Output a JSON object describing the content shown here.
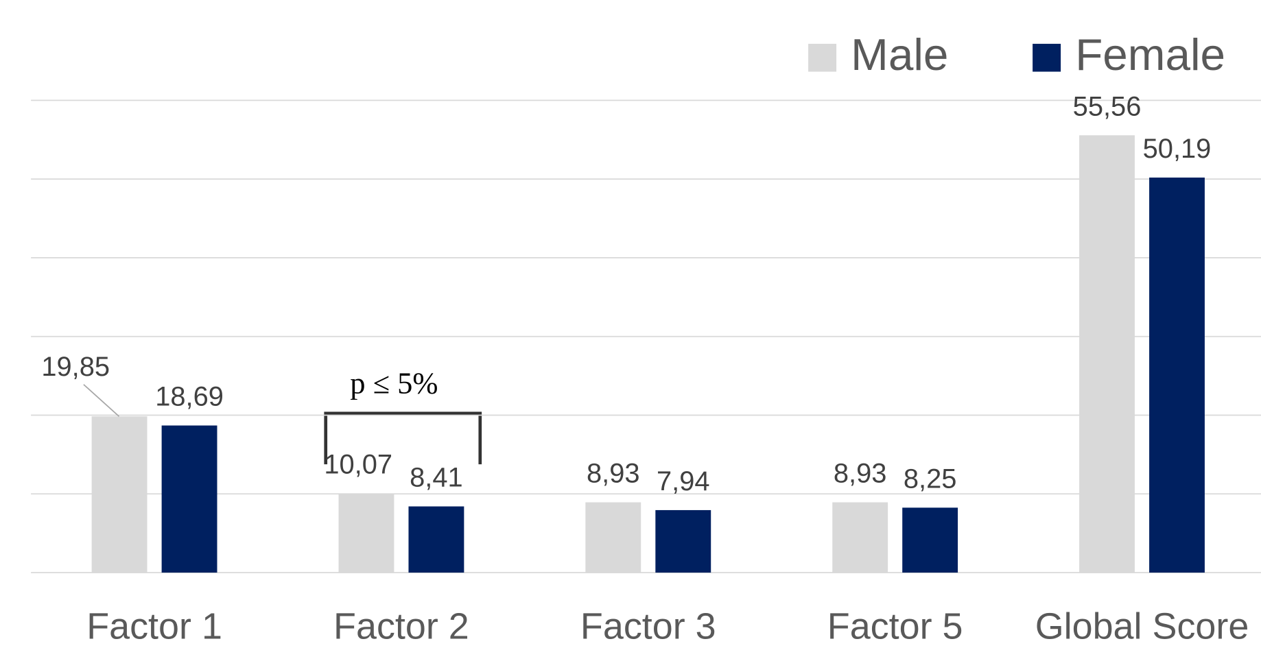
{
  "chart_data": {
    "type": "bar",
    "categories": [
      "Factor 1",
      "Factor 2",
      "Factor 3",
      "Factor  5",
      "Global Score"
    ],
    "series": [
      {
        "name": "Male",
        "color": "#d9d9d9",
        "values": [
          19.85,
          10.07,
          8.93,
          8.93,
          55.56
        ],
        "value_labels": [
          "19,85",
          "10,07",
          "8,93",
          "8,93",
          "55,56"
        ]
      },
      {
        "name": "Female",
        "color": "#002060",
        "values": [
          18.69,
          8.41,
          7.94,
          8.25,
          50.19
        ],
        "value_labels": [
          "18,69",
          "8,41",
          "7,94",
          "8,25",
          "50,19"
        ]
      }
    ],
    "ylim": [
      0,
      60
    ],
    "yticks": [
      0,
      10,
      20,
      30,
      40,
      50,
      60
    ],
    "grid": true,
    "legend": "top-right",
    "annotations": [
      "p ≤ 5%"
    ]
  }
}
